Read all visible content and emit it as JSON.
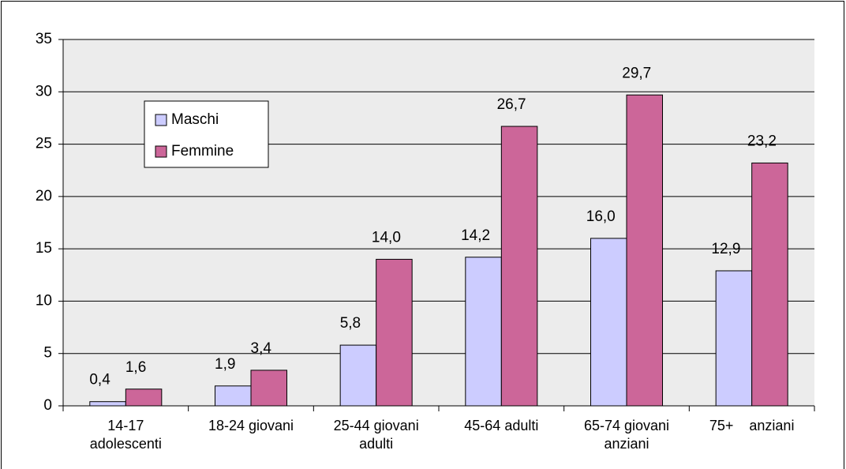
{
  "chart_data": {
    "type": "bar",
    "categories": [
      "14-17 adolescenti",
      "18-24 giovani",
      "25-44 giovani adulti",
      "45-64 adulti",
      "65-74 giovani anziani",
      "75+    anziani"
    ],
    "series": [
      {
        "name": "Maschi",
        "color": "#ccccff",
        "values": [
          0.4,
          1.9,
          5.8,
          14.2,
          16.0,
          12.9
        ],
        "value_labels": [
          "0,4",
          "1,9",
          "5,8",
          "14,2",
          "16,0",
          "12,9"
        ]
      },
      {
        "name": "Femmine",
        "color": "#cc6699",
        "values": [
          1.6,
          3.4,
          14.0,
          26.7,
          29.7,
          23.2
        ],
        "value_labels": [
          "1,6",
          "3,4",
          "14,0",
          "26,7",
          "29,7",
          "23,2"
        ]
      }
    ],
    "ylim": [
      0,
      35
    ],
    "yticks": [
      0,
      5,
      10,
      15,
      20,
      25,
      30,
      35
    ],
    "grid": true,
    "legend": "upper left"
  }
}
